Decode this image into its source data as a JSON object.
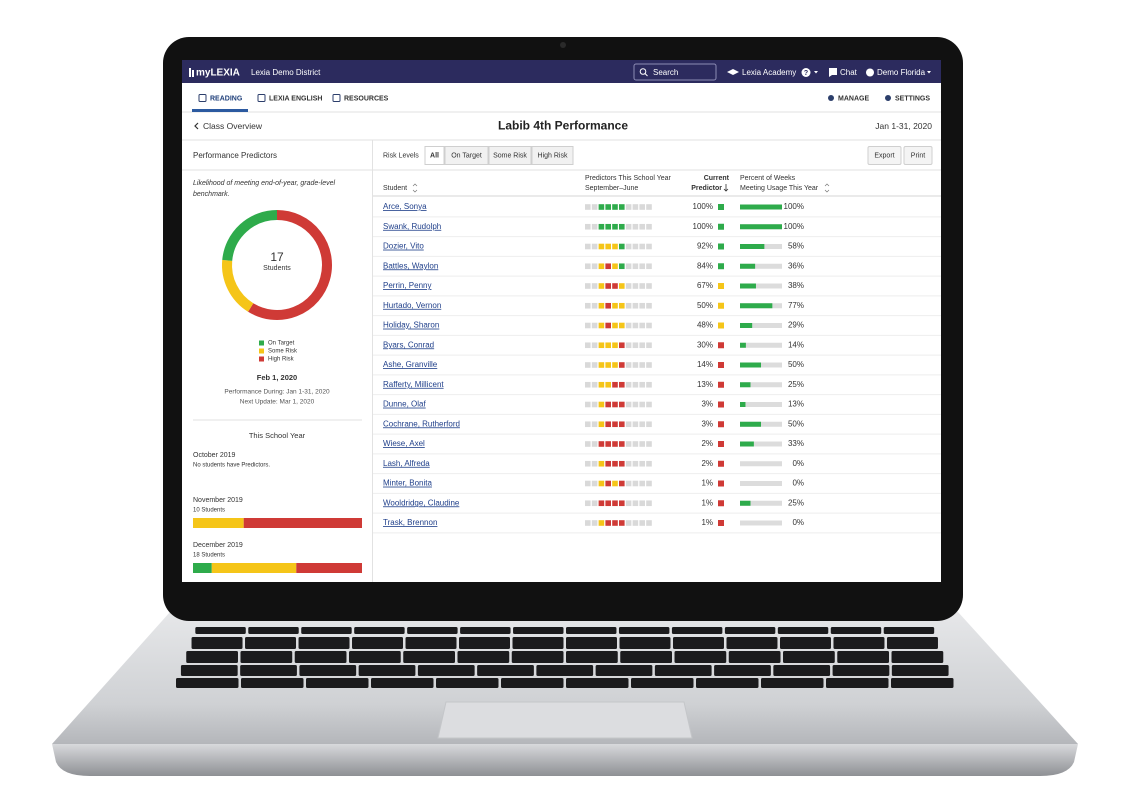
{
  "nav": {
    "brand": "myLEXIA",
    "district": "Lexia Demo District",
    "search": "Search",
    "academy": "Lexia Academy",
    "help": "?",
    "chat": "Chat",
    "user": "Demo Florida"
  },
  "tabs": {
    "left": [
      "READING",
      "LEXIA ENGLISH",
      "RESOURCES"
    ],
    "right": [
      "MANAGE",
      "SETTINGS"
    ]
  },
  "header": {
    "back": "Class Overview",
    "title": "Labib 4th Performance",
    "date": "Jan 1-31, 2020"
  },
  "colors": {
    "g": "#2eab4b",
    "y": "#f5c518",
    "r": "#cf3a36",
    "n": "#d9d9d9"
  },
  "sidebar": {
    "title": "Performance Predictors",
    "description": [
      "Likelihood of meeting end-of-year, grade-level",
      "benchmark."
    ],
    "donut": {
      "total": 17,
      "label": "Students",
      "segments": [
        {
          "name": "On Target",
          "status": "g",
          "value": 4
        },
        {
          "name": "Some Risk",
          "status": "y",
          "value": 3
        },
        {
          "name": "High Risk",
          "status": "r",
          "value": 10
        }
      ]
    },
    "date": "Feb 1, 2020",
    "performance": "Performance During: Jan 1-31, 2020",
    "next_update": "Next Update: Mar 1, 2020",
    "year_title": "This School Year",
    "months": [
      {
        "name": "October 2019",
        "note": "No students have Predictors."
      },
      {
        "name": "November 2019",
        "note": "10 Students",
        "segments": [
          {
            "status": "y",
            "value": 3
          },
          {
            "status": "r",
            "value": 7
          }
        ]
      },
      {
        "name": "December 2019",
        "note": "18 Students",
        "segments": [
          {
            "status": "g",
            "value": 2
          },
          {
            "status": "y",
            "value": 9
          },
          {
            "status": "r",
            "value": 7
          }
        ]
      }
    ]
  },
  "toolbar": {
    "label": "Risk Levels",
    "filters": [
      {
        "label": "All",
        "selected": true
      },
      {
        "label": "On Target",
        "selected": false
      },
      {
        "label": "Some Risk",
        "selected": false
      },
      {
        "label": "High Risk",
        "selected": false
      }
    ],
    "buttons": [
      "Export",
      "Print"
    ]
  },
  "table": {
    "columns": {
      "student": "Student",
      "predictors": [
        "Predictors This School Year",
        "September–June"
      ],
      "current": [
        "Current",
        "Predictor"
      ],
      "usage": [
        "Percent of Weeks",
        "Meeting Usage This Year"
      ]
    },
    "rows": [
      {
        "name": "Arce, Sonya",
        "predictors": "nnggggnnnn",
        "current": "100%",
        "status": "g",
        "usage": 100,
        "usage_label": "100%"
      },
      {
        "name": "Swank, Rudolph",
        "predictors": "nnggggnnnn",
        "current": "100%",
        "status": "g",
        "usage": 100,
        "usage_label": "100%"
      },
      {
        "name": "Dozier, Vito",
        "predictors": "nnyyygnnnn",
        "current": "92%",
        "status": "g",
        "usage": 58,
        "usage_label": "58%"
      },
      {
        "name": "Battles, Waylon",
        "predictors": "nnyrygnnnn",
        "current": "84%",
        "status": "g",
        "usage": 36,
        "usage_label": "36%"
      },
      {
        "name": "Perrin, Penny",
        "predictors": "nnyrrynnnn",
        "current": "67%",
        "status": "y",
        "usage": 38,
        "usage_label": "38%"
      },
      {
        "name": "Hurtado, Vernon",
        "predictors": "nnyryynnnn",
        "current": "50%",
        "status": "y",
        "usage": 77,
        "usage_label": "77%"
      },
      {
        "name": "Holiday, Sharon",
        "predictors": "nnyryynnnn",
        "current": "48%",
        "status": "y",
        "usage": 29,
        "usage_label": "29%"
      },
      {
        "name": "Byars, Conrad",
        "predictors": "nnyyyrnnnn",
        "current": "30%",
        "status": "r",
        "usage": 14,
        "usage_label": "14%"
      },
      {
        "name": "Ashe, Granville",
        "predictors": "nnyyyrnnnn",
        "current": "14%",
        "status": "r",
        "usage": 50,
        "usage_label": "50%"
      },
      {
        "name": "Rafferty, Millicent",
        "predictors": "nnyyrrnnnn",
        "current": "13%",
        "status": "r",
        "usage": 25,
        "usage_label": "25%"
      },
      {
        "name": "Dunne, Olaf",
        "predictors": "nnyrrrnnnn",
        "current": "3%",
        "status": "r",
        "usage": 13,
        "usage_label": "13%"
      },
      {
        "name": "Cochrane, Rutherford",
        "predictors": "nnyrrrnnnn",
        "current": "3%",
        "status": "r",
        "usage": 50,
        "usage_label": "50%"
      },
      {
        "name": "Wiese, Axel",
        "predictors": "nnrrrrnnnn",
        "current": "2%",
        "status": "r",
        "usage": 33,
        "usage_label": "33%"
      },
      {
        "name": "Lash, Alfreda",
        "predictors": "nnyrrrnnnn",
        "current": "2%",
        "status": "r",
        "usage": 0,
        "usage_label": "0%"
      },
      {
        "name": "Minter, Bonita",
        "predictors": "nnyryrnnnn",
        "current": "1%",
        "status": "r",
        "usage": 0,
        "usage_label": "0%"
      },
      {
        "name": "Wooldridge, Claudine",
        "predictors": "nnrrrrnnnn",
        "current": "1%",
        "status": "r",
        "usage": 25,
        "usage_label": "25%"
      },
      {
        "name": "Trask, Brennon",
        "predictors": "nnyrrrnnnn",
        "current": "1%",
        "status": "r",
        "usage": 0,
        "usage_label": "0%"
      }
    ]
  }
}
